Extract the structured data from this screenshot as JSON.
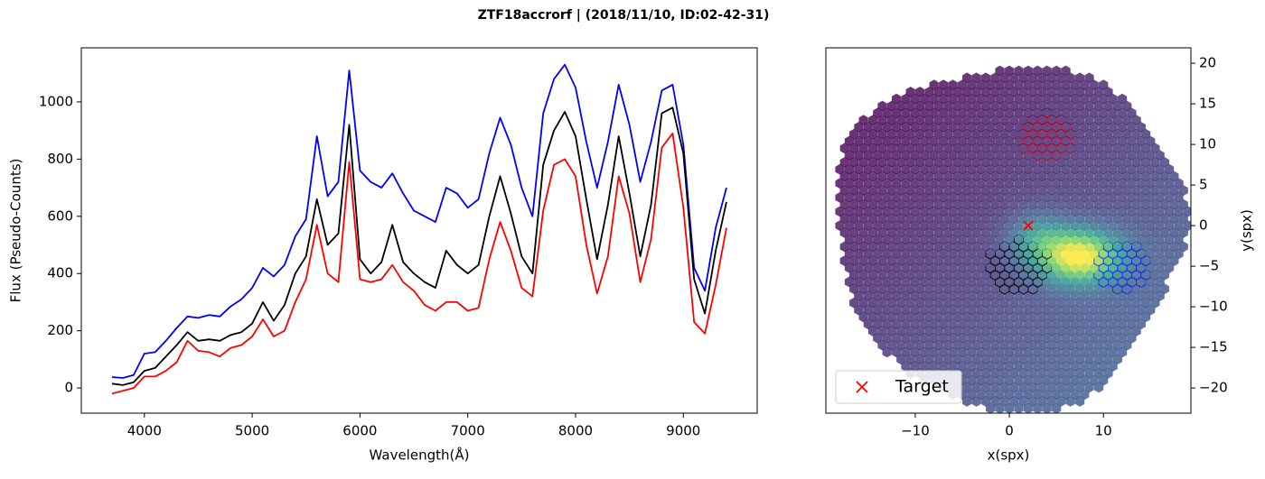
{
  "title": "ZTF18accrorf | (2018/11/10, ID:02-42-31)",
  "chart_data": [
    {
      "type": "line",
      "xlabel": "Wavelength(Å)",
      "ylabel": "Flux (Pseudo-Counts)",
      "x": [
        3700,
        3800,
        3900,
        4000,
        4100,
        4200,
        4300,
        4400,
        4500,
        4600,
        4700,
        4800,
        4900,
        5000,
        5100,
        5200,
        5300,
        5400,
        5500,
        5600,
        5700,
        5800,
        5900,
        6000,
        6100,
        6200,
        6300,
        6400,
        6500,
        6600,
        6700,
        6800,
        6900,
        7000,
        7100,
        7200,
        7300,
        7400,
        7500,
        7600,
        7700,
        7800,
        7900,
        8000,
        8100,
        8200,
        8300,
        8400,
        8500,
        8600,
        8700,
        8800,
        8900,
        9000,
        9100,
        9200,
        9300,
        9400
      ],
      "series": [
        {
          "color": "#0000ff",
          "values": [
            38,
            35,
            45,
            120,
            125,
            165,
            210,
            250,
            245,
            255,
            250,
            285,
            310,
            350,
            420,
            390,
            430,
            530,
            590,
            880,
            670,
            720,
            1110,
            760,
            720,
            700,
            750,
            680,
            620,
            600,
            580,
            700,
            680,
            630,
            660,
            820,
            945,
            850,
            700,
            600,
            960,
            1080,
            1130,
            1050,
            860,
            700,
            860,
            1060,
            920,
            720,
            860,
            1040,
            1060,
            850,
            420,
            340,
            560,
            700
          ]
        },
        {
          "color": "#000000",
          "values": [
            15,
            10,
            20,
            60,
            70,
            110,
            150,
            195,
            165,
            170,
            165,
            185,
            195,
            225,
            300,
            235,
            290,
            400,
            460,
            660,
            500,
            540,
            920,
            450,
            400,
            440,
            570,
            440,
            400,
            370,
            350,
            480,
            430,
            400,
            430,
            600,
            740,
            610,
            460,
            400,
            780,
            900,
            965,
            880,
            660,
            450,
            640,
            880,
            680,
            460,
            640,
            960,
            980,
            820,
            380,
            260,
            480,
            650
          ]
        },
        {
          "color": "#ff0000",
          "values": [
            -20,
            -10,
            0,
            40,
            40,
            60,
            90,
            165,
            130,
            125,
            110,
            140,
            150,
            180,
            240,
            180,
            200,
            300,
            380,
            570,
            400,
            370,
            790,
            380,
            370,
            380,
            430,
            370,
            340,
            290,
            270,
            300,
            300,
            270,
            280,
            450,
            580,
            480,
            350,
            320,
            620,
            780,
            800,
            740,
            500,
            330,
            460,
            740,
            610,
            370,
            520,
            840,
            890,
            630,
            230,
            190,
            360,
            560
          ]
        }
      ],
      "xlim": [
        3415,
        9685
      ],
      "ylim": [
        -88,
        1189
      ],
      "xticks": [
        4000,
        5000,
        6000,
        7000,
        8000,
        9000
      ],
      "yticks": [
        0,
        200,
        400,
        600,
        800,
        1000
      ]
    },
    {
      "type": "scatter",
      "xlabel": "x(spx)",
      "ylabel": "y(spx)",
      "series": [
        {
          "name": "Target",
          "color": "#ff0000",
          "marker": "x",
          "x": [
            2
          ],
          "y": [
            0
          ]
        }
      ],
      "xlim": [
        -19.5,
        19.3
      ],
      "ylim": [
        -23.1,
        21.9
      ],
      "xticks": [
        {
          "value": -10,
          "label": "−10"
        },
        0,
        10
      ],
      "yticks": [
        {
          "value": -20,
          "label": "−20"
        },
        {
          "value": -15,
          "label": "−15"
        },
        {
          "value": -10,
          "label": "−10"
        },
        {
          "value": -5,
          "label": "−5"
        },
        0,
        5,
        10,
        15,
        20
      ],
      "legend": "lower left",
      "y_axis_side": "right"
    }
  ]
}
